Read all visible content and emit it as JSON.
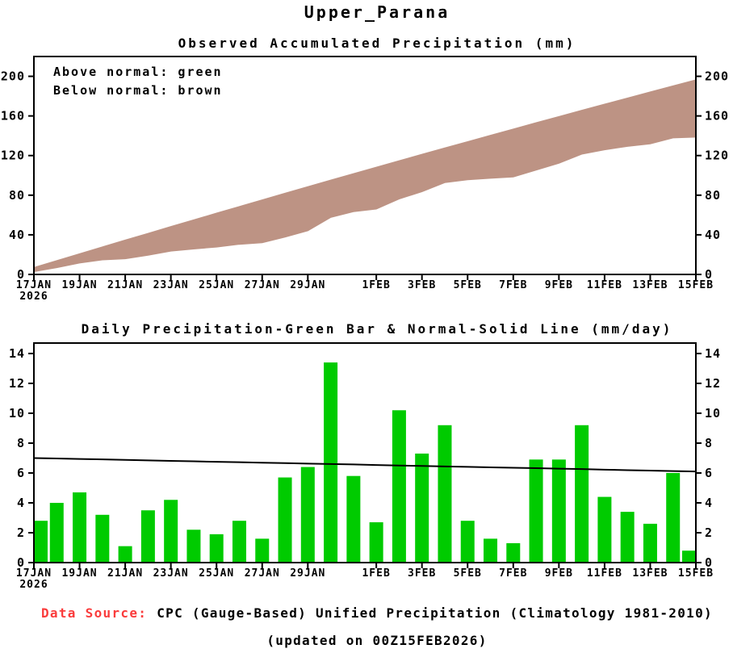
{
  "page": {
    "title": "Upper_Parana",
    "footer": {
      "source_label": "Data Source:",
      "source_text": "CPC (Gauge-Based) Unified Precipitation (Climatology 1981-2010)",
      "updated": "(updated on 00Z15FEB2026)"
    },
    "colors": {
      "accent_red": "#fa3c3c",
      "below_normal_brown": "#bd9384",
      "above_normal_green": "#00cb00",
      "axis_black": "#000000"
    }
  },
  "chart_data": [
    {
      "type": "area",
      "title": "Observed Accumulated Precipitation (mm)",
      "legend": [
        "Above normal: green",
        "Below normal: brown"
      ],
      "note": "Brown fill spans between accumulated normal (upper edge) and accumulated observed (lower edge); observed is below normal for the whole period",
      "x": [
        "17JAN",
        "18JAN",
        "19JAN",
        "20JAN",
        "21JAN",
        "22JAN",
        "23JAN",
        "24JAN",
        "25JAN",
        "26JAN",
        "27JAN",
        "28JAN",
        "29JAN",
        "30JAN",
        "31JAN",
        "1FEB",
        "2FEB",
        "3FEB",
        "4FEB",
        "5FEB",
        "6FEB",
        "7FEB",
        "8FEB",
        "9FEB",
        "10FEB",
        "11FEB",
        "12FEB",
        "13FEB",
        "14FEB",
        "15FEB"
      ],
      "year": "2026",
      "series": [
        {
          "name": "Accumulated Normal",
          "values": [
            7.0,
            14.0,
            20.9,
            27.8,
            34.7,
            41.5,
            48.4,
            55.1,
            61.9,
            68.6,
            75.3,
            82.0,
            88.6,
            95.2,
            101.8,
            108.3,
            114.8,
            121.3,
            127.7,
            134.1,
            140.5,
            146.8,
            153.2,
            159.4,
            165.7,
            171.9,
            178.1,
            184.3,
            190.4,
            196.5
          ]
        },
        {
          "name": "Accumulated Observed",
          "values": [
            2.8,
            6.8,
            11.5,
            14.7,
            15.8,
            19.3,
            23.5,
            25.7,
            27.6,
            30.4,
            32.0,
            37.7,
            44.1,
            57.5,
            63.3,
            66.0,
            76.2,
            83.5,
            92.7,
            95.5,
            97.1,
            98.4,
            105.3,
            112.2,
            121.4,
            125.8,
            129.2,
            131.8,
            137.8,
            138.6
          ]
        }
      ],
      "ylim": [
        0,
        220
      ],
      "y_ticks": [
        0,
        40,
        80,
        120,
        160,
        200
      ],
      "x_ticks": [
        {
          "day": 0,
          "label": "17JAN",
          "sub": "2026"
        },
        {
          "day": 2,
          "label": "19JAN"
        },
        {
          "day": 4,
          "label": "21JAN"
        },
        {
          "day": 6,
          "label": "23JAN"
        },
        {
          "day": 8,
          "label": "25JAN"
        },
        {
          "day": 10,
          "label": "27JAN"
        },
        {
          "day": 12,
          "label": "29JAN"
        },
        {
          "day": 15,
          "label": "1FEB"
        },
        {
          "day": 17,
          "label": "3FEB"
        },
        {
          "day": 19,
          "label": "5FEB"
        },
        {
          "day": 21,
          "label": "7FEB"
        },
        {
          "day": 23,
          "label": "9FEB"
        },
        {
          "day": 25,
          "label": "11FEB"
        },
        {
          "day": 27,
          "label": "13FEB"
        },
        {
          "day": 29,
          "label": "15FEB"
        }
      ],
      "fill_color": "#bd9384",
      "grid": false,
      "legend_position": "top-left-inside"
    },
    {
      "type": "bar",
      "title": "Daily Precipitation-Green Bar & Normal-Solid Line (mm/day)",
      "x": [
        "17JAN",
        "18JAN",
        "19JAN",
        "20JAN",
        "21JAN",
        "22JAN",
        "23JAN",
        "24JAN",
        "25JAN",
        "26JAN",
        "27JAN",
        "28JAN",
        "29JAN",
        "30JAN",
        "31JAN",
        "1FEB",
        "2FEB",
        "3FEB",
        "4FEB",
        "5FEB",
        "6FEB",
        "7FEB",
        "8FEB",
        "9FEB",
        "10FEB",
        "11FEB",
        "12FEB",
        "13FEB",
        "14FEB",
        "15FEB"
      ],
      "year": "2026",
      "bar_values": [
        2.8,
        4.0,
        4.7,
        3.2,
        1.1,
        3.5,
        4.2,
        2.2,
        1.9,
        2.8,
        1.6,
        5.7,
        6.4,
        13.4,
        5.8,
        2.7,
        10.2,
        7.3,
        9.2,
        2.8,
        1.6,
        1.3,
        6.9,
        6.9,
        9.2,
        4.4,
        3.4,
        2.6,
        6.0,
        0.8
      ],
      "line": {
        "name": "Daily Normal",
        "values": [
          7.0,
          6.97,
          6.94,
          6.91,
          6.88,
          6.84,
          6.81,
          6.78,
          6.75,
          6.72,
          6.69,
          6.66,
          6.63,
          6.6,
          6.57,
          6.53,
          6.5,
          6.47,
          6.44,
          6.41,
          6.38,
          6.35,
          6.32,
          6.29,
          6.26,
          6.22,
          6.19,
          6.16,
          6.13,
          6.1
        ]
      },
      "ylim": [
        0,
        14.7
      ],
      "y_ticks": [
        0,
        2,
        4,
        6,
        8,
        10,
        12,
        14
      ],
      "x_ticks": [
        {
          "day": 0,
          "label": "17JAN",
          "sub": "2026"
        },
        {
          "day": 2,
          "label": "19JAN"
        },
        {
          "day": 4,
          "label": "21JAN"
        },
        {
          "day": 6,
          "label": "23JAN"
        },
        {
          "day": 8,
          "label": "25JAN"
        },
        {
          "day": 10,
          "label": "27JAN"
        },
        {
          "day": 12,
          "label": "29JAN"
        },
        {
          "day": 15,
          "label": "1FEB"
        },
        {
          "day": 17,
          "label": "3FEB"
        },
        {
          "day": 19,
          "label": "5FEB"
        },
        {
          "day": 21,
          "label": "7FEB"
        },
        {
          "day": 23,
          "label": "9FEB"
        },
        {
          "day": 25,
          "label": "11FEB"
        },
        {
          "day": 27,
          "label": "13FEB"
        },
        {
          "day": 29,
          "label": "15FEB"
        }
      ],
      "bar_color": "#00cb00",
      "line_color": "#000000",
      "grid": false
    }
  ]
}
